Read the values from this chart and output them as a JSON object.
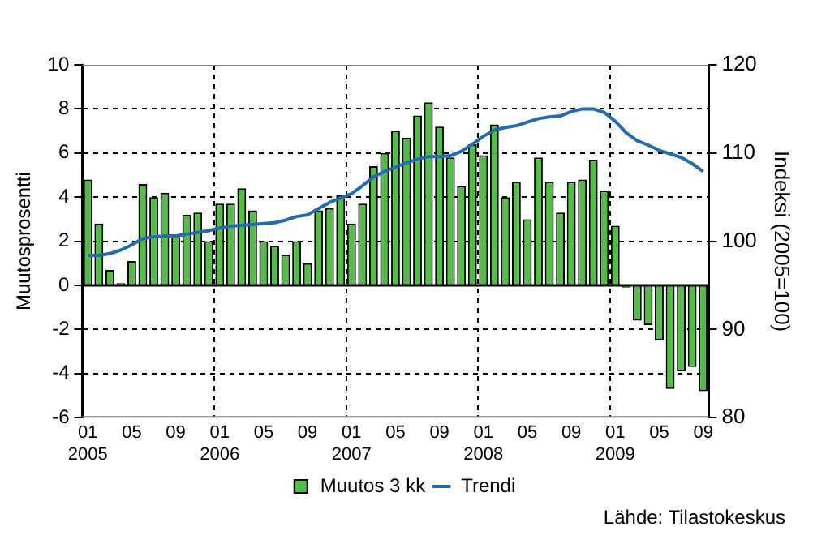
{
  "chart_data": {
    "type": "bar",
    "categories": [
      "01\n2005",
      null,
      null,
      null,
      "05",
      null,
      null,
      null,
      "09",
      null,
      null,
      null,
      "01\n2006",
      null,
      null,
      null,
      "05",
      null,
      null,
      null,
      "09",
      null,
      null,
      null,
      "01\n2007",
      null,
      null,
      null,
      "05",
      null,
      null,
      null,
      "09",
      null,
      null,
      null,
      "01\n2008",
      null,
      null,
      null,
      "05",
      null,
      null,
      null,
      "09",
      null,
      null,
      null,
      "01\n2009",
      null,
      null,
      null,
      "05",
      null,
      null,
      null,
      "09"
    ],
    "series": [
      {
        "name": "Muutos 3 kk",
        "color": "#50c040",
        "values": [
          4.8,
          2.8,
          0.7,
          0.1,
          1.1,
          4.6,
          4.0,
          4.2,
          2.2,
          3.2,
          3.3,
          2.0,
          3.7,
          3.7,
          4.4,
          3.4,
          2.0,
          1.8,
          1.4,
          2.0,
          1.0,
          3.4,
          3.5,
          4.1,
          2.8,
          3.7,
          5.4,
          6.0,
          7.0,
          6.7,
          7.7,
          8.3,
          7.2,
          5.8,
          4.5,
          6.4,
          5.9,
          7.3,
          4.0,
          4.7,
          3.0,
          5.8,
          4.7,
          3.3,
          4.7,
          4.8,
          5.7,
          4.3,
          2.7,
          -0.1,
          -1.6,
          -1.8,
          -2.5,
          -4.7,
          -3.9,
          -3.7,
          -4.8
        ]
      },
      {
        "name": "Trendi",
        "type": "line",
        "axis": "y2",
        "color": "#1f6cb4",
        "values": [
          98.4,
          98.4,
          98.6,
          99.0,
          99.6,
          100.3,
          100.5,
          100.6,
          100.6,
          100.8,
          101.0,
          101.2,
          101.5,
          101.7,
          101.8,
          101.9,
          102.0,
          102.1,
          102.4,
          102.8,
          103.0,
          103.7,
          104.4,
          104.9,
          105.4,
          106.3,
          107.3,
          107.9,
          108.4,
          108.9,
          109.3,
          109.6,
          109.6,
          109.7,
          110.2,
          111.0,
          111.9,
          112.6,
          112.9,
          113.1,
          113.5,
          113.9,
          114.1,
          114.2,
          114.7,
          115.0,
          115.0,
          114.6,
          113.6,
          112.3,
          111.4,
          110.9,
          110.3,
          109.9,
          109.5,
          108.8,
          107.9
        ]
      }
    ],
    "ylabel": "Muutosprosentti",
    "y2label": "Indeksi (2005=100)",
    "ylim": [
      -6,
      10
    ],
    "yticks": [
      -6,
      -4,
      -2,
      0,
      2,
      4,
      6,
      8,
      10
    ],
    "y2lim": [
      80,
      120
    ],
    "y2ticks": [
      80,
      90,
      100,
      110,
      120
    ],
    "grid": true,
    "legend": "bottom",
    "marker": "none",
    "annotations": [
      "Lähde: Tilastokeskus"
    ]
  }
}
